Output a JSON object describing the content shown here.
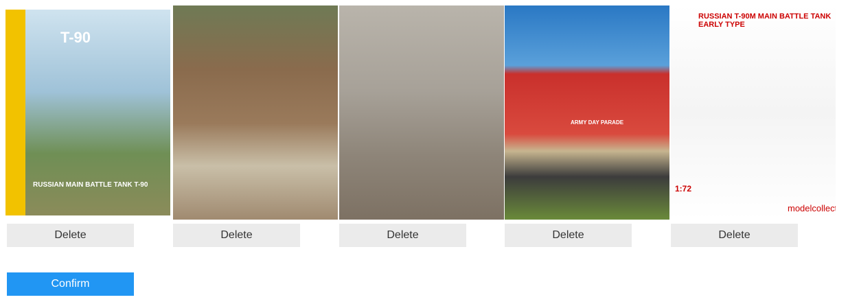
{
  "images": [
    {
      "caption": [
        "T-90",
        "RUSSIAN MAIN BATTLE TANK T-90"
      ],
      "button": "Delete"
    },
    {
      "caption": [],
      "button": "Delete"
    },
    {
      "caption": [],
      "button": "Delete"
    },
    {
      "caption": [
        "ARMY DAY PARADE"
      ],
      "button": "Delete"
    },
    {
      "caption": [
        "RUSSIAN T-90M MAIN BATTLE TANK EARLY TYPE",
        "1:72",
        "modelcollect"
      ],
      "button": "Delete"
    }
  ],
  "confirm": "Confirm"
}
